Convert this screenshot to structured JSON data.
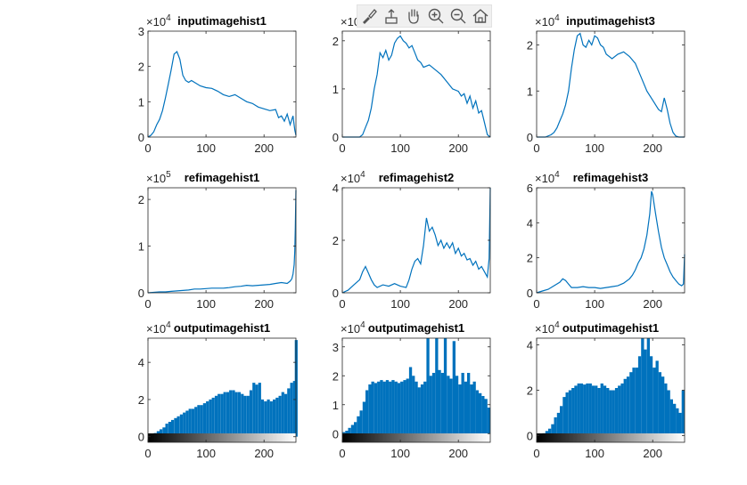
{
  "toolbar": {
    "items": [
      {
        "name": "brush-icon"
      },
      {
        "name": "data-tips-icon"
      },
      {
        "name": "pan-hand-icon"
      },
      {
        "name": "zoom-in-icon"
      },
      {
        "name": "zoom-out-icon"
      },
      {
        "name": "home-icon"
      }
    ]
  },
  "colors": {
    "line": "#0072bd",
    "axes": "#262626",
    "background": "#ffffff"
  },
  "chart_data": [
    {
      "type": "line",
      "title": "inputimagehist1",
      "exponent": "4",
      "xlim": [
        0,
        255
      ],
      "ylim": [
        0,
        3
      ],
      "xticks": [
        0,
        100,
        200
      ],
      "yticks": [
        0,
        1,
        2,
        3
      ],
      "x": [
        0,
        5,
        10,
        15,
        20,
        25,
        30,
        35,
        40,
        45,
        50,
        55,
        60,
        65,
        70,
        75,
        80,
        90,
        100,
        110,
        120,
        130,
        140,
        150,
        160,
        170,
        180,
        190,
        200,
        210,
        220,
        225,
        230,
        235,
        240,
        245,
        250,
        253,
        255
      ],
      "y": [
        0,
        0.05,
        0.15,
        0.35,
        0.5,
        0.75,
        1.1,
        1.5,
        1.9,
        2.35,
        2.42,
        2.2,
        1.75,
        1.6,
        1.55,
        1.6,
        1.55,
        1.45,
        1.4,
        1.38,
        1.3,
        1.2,
        1.15,
        1.2,
        1.1,
        1.0,
        0.95,
        0.85,
        0.8,
        0.75,
        0.78,
        0.55,
        0.6,
        0.45,
        0.65,
        0.35,
        0.6,
        0.2,
        0.05
      ]
    },
    {
      "type": "line",
      "title": "",
      "exponent": "4",
      "xlim": [
        0,
        255
      ],
      "ylim": [
        0,
        2.2
      ],
      "xticks": [
        0,
        100,
        200
      ],
      "yticks": [
        0,
        1,
        2
      ],
      "x": [
        0,
        15,
        30,
        35,
        40,
        45,
        50,
        55,
        60,
        65,
        70,
        75,
        80,
        85,
        90,
        95,
        100,
        105,
        110,
        115,
        120,
        125,
        130,
        135,
        140,
        150,
        160,
        170,
        180,
        190,
        200,
        205,
        210,
        215,
        220,
        225,
        230,
        235,
        240,
        245,
        250,
        255
      ],
      "y": [
        0,
        0,
        0,
        0.05,
        0.2,
        0.35,
        0.6,
        1.0,
        1.3,
        1.75,
        1.65,
        1.8,
        1.6,
        1.7,
        1.95,
        2.05,
        2.1,
        2.0,
        1.95,
        1.85,
        1.9,
        1.75,
        1.6,
        1.55,
        1.45,
        1.5,
        1.4,
        1.3,
        1.15,
        1.0,
        0.95,
        0.85,
        0.9,
        0.7,
        0.85,
        0.6,
        0.75,
        0.5,
        0.55,
        0.3,
        0.05,
        0
      ]
    },
    {
      "type": "line",
      "title": "inputimagehist3",
      "exponent": "4",
      "xlim": [
        0,
        255
      ],
      "ylim": [
        0,
        2.3
      ],
      "xticks": [
        0,
        100,
        200
      ],
      "yticks": [
        0,
        1,
        2
      ],
      "x": [
        0,
        15,
        25,
        30,
        35,
        40,
        45,
        50,
        55,
        60,
        65,
        70,
        75,
        80,
        85,
        90,
        95,
        100,
        105,
        110,
        115,
        120,
        130,
        140,
        150,
        160,
        170,
        180,
        190,
        200,
        210,
        215,
        220,
        225,
        230,
        235,
        240,
        245,
        255
      ],
      "y": [
        0,
        0,
        0.05,
        0.1,
        0.2,
        0.35,
        0.5,
        0.7,
        1.0,
        1.5,
        1.9,
        2.2,
        2.25,
        2.0,
        1.95,
        2.1,
        2.0,
        2.2,
        2.15,
        2.0,
        1.95,
        1.8,
        1.7,
        1.8,
        1.85,
        1.75,
        1.6,
        1.3,
        1.0,
        0.8,
        0.6,
        0.55,
        0.85,
        0.6,
        0.3,
        0.1,
        0.02,
        0,
        0
      ]
    },
    {
      "type": "line",
      "title": "refimagehist1",
      "exponent": "5",
      "xlim": [
        0,
        255
      ],
      "ylim": [
        0,
        2.25
      ],
      "xticks": [
        0,
        100,
        200
      ],
      "yticks": [
        0,
        1,
        2
      ],
      "x": [
        0,
        10,
        20,
        30,
        40,
        50,
        60,
        70,
        80,
        90,
        100,
        110,
        120,
        130,
        140,
        150,
        160,
        170,
        180,
        190,
        200,
        210,
        220,
        230,
        240,
        245,
        248,
        250,
        252,
        253,
        254,
        255
      ],
      "y": [
        0,
        0.01,
        0.02,
        0.02,
        0.03,
        0.04,
        0.05,
        0.06,
        0.08,
        0.08,
        0.09,
        0.1,
        0.1,
        0.1,
        0.11,
        0.13,
        0.14,
        0.16,
        0.15,
        0.16,
        0.17,
        0.18,
        0.2,
        0.22,
        0.2,
        0.25,
        0.3,
        0.4,
        0.6,
        0.9,
        1.4,
        2.2
      ]
    },
    {
      "type": "line",
      "title": "refimagehist2",
      "exponent": "4",
      "xlim": [
        0,
        255
      ],
      "ylim": [
        0,
        4
      ],
      "xticks": [
        0,
        100,
        200
      ],
      "yticks": [
        0,
        2,
        4
      ],
      "x": [
        0,
        10,
        20,
        30,
        35,
        40,
        45,
        50,
        55,
        60,
        70,
        80,
        90,
        100,
        110,
        115,
        120,
        125,
        130,
        135,
        140,
        145,
        150,
        155,
        160,
        165,
        170,
        175,
        180,
        185,
        190,
        195,
        200,
        205,
        210,
        215,
        220,
        225,
        230,
        235,
        240,
        245,
        250,
        253,
        255
      ],
      "y": [
        0,
        0.1,
        0.3,
        0.5,
        0.8,
        1.0,
        0.75,
        0.5,
        0.3,
        0.2,
        0.3,
        0.25,
        0.35,
        0.25,
        0.2,
        0.5,
        0.9,
        1.2,
        1.3,
        1.1,
        1.8,
        2.85,
        2.35,
        2.5,
        2.2,
        1.8,
        2.0,
        1.7,
        1.9,
        1.7,
        1.9,
        1.5,
        1.7,
        1.4,
        1.5,
        1.25,
        1.3,
        1.05,
        1.2,
        0.9,
        1.0,
        0.8,
        0.6,
        1.3,
        4.0
      ]
    },
    {
      "type": "line",
      "title": "refimagehist3",
      "exponent": "4",
      "xlim": [
        0,
        255
      ],
      "ylim": [
        0,
        6
      ],
      "xticks": [
        0,
        100,
        200
      ],
      "yticks": [
        0,
        2,
        4,
        6
      ],
      "x": [
        0,
        10,
        20,
        30,
        40,
        45,
        50,
        55,
        60,
        70,
        80,
        90,
        100,
        110,
        120,
        130,
        140,
        150,
        160,
        165,
        170,
        175,
        180,
        185,
        190,
        195,
        198,
        200,
        205,
        210,
        215,
        220,
        225,
        230,
        235,
        240,
        245,
        250,
        253,
        255
      ],
      "y": [
        0,
        0.1,
        0.2,
        0.4,
        0.6,
        0.8,
        0.7,
        0.5,
        0.3,
        0.3,
        0.35,
        0.3,
        0.3,
        0.25,
        0.3,
        0.35,
        0.4,
        0.55,
        0.8,
        1.0,
        1.3,
        1.7,
        2.0,
        2.5,
        3.3,
        4.5,
        5.8,
        5.6,
        4.5,
        3.5,
        2.6,
        2.0,
        1.6,
        1.2,
        0.9,
        0.7,
        0.5,
        0.4,
        0.5,
        2.2
      ]
    },
    {
      "type": "bar",
      "title": "outputimagehist1",
      "exponent": "4",
      "xlim": [
        0,
        255
      ],
      "ylim": [
        -0.3,
        5.3
      ],
      "xticks": [
        0,
        100,
        200
      ],
      "yticks": [
        0,
        2,
        4
      ],
      "colorbar": true,
      "x": [
        0,
        5,
        10,
        15,
        20,
        25,
        30,
        35,
        40,
        45,
        50,
        55,
        60,
        65,
        70,
        75,
        80,
        85,
        90,
        95,
        100,
        105,
        110,
        115,
        120,
        125,
        130,
        135,
        140,
        145,
        150,
        155,
        160,
        165,
        170,
        175,
        180,
        185,
        190,
        195,
        200,
        205,
        210,
        215,
        220,
        225,
        230,
        235,
        240,
        245,
        250,
        253
      ],
      "y": [
        0.05,
        0.1,
        0.2,
        0.3,
        0.4,
        0.5,
        0.7,
        0.8,
        0.9,
        1.0,
        1.1,
        1.2,
        1.3,
        1.4,
        1.5,
        1.5,
        1.6,
        1.7,
        1.7,
        1.8,
        1.9,
        2.0,
        2.1,
        2.2,
        2.3,
        2.3,
        2.4,
        2.4,
        2.5,
        2.5,
        2.4,
        2.4,
        2.3,
        2.2,
        2.2,
        2.5,
        2.9,
        2.8,
        2.9,
        2.0,
        1.9,
        2.0,
        1.9,
        2.0,
        2.1,
        2.2,
        2.4,
        2.3,
        2.6,
        2.9,
        3.0,
        5.2
      ]
    },
    {
      "type": "bar",
      "title": "outputimagehist1",
      "exponent": "4",
      "xlim": [
        0,
        255
      ],
      "ylim": [
        -0.3,
        3.3
      ],
      "xticks": [
        0,
        100,
        200
      ],
      "yticks": [
        0,
        1,
        2,
        3
      ],
      "colorbar": true,
      "x": [
        0,
        5,
        10,
        15,
        20,
        25,
        30,
        35,
        40,
        45,
        50,
        55,
        60,
        65,
        70,
        75,
        80,
        85,
        90,
        95,
        100,
        105,
        110,
        115,
        120,
        125,
        130,
        135,
        140,
        145,
        150,
        155,
        160,
        165,
        170,
        175,
        180,
        185,
        190,
        195,
        200,
        205,
        210,
        215,
        220,
        225,
        230,
        235,
        240,
        245,
        250
      ],
      "y": [
        0.05,
        0.1,
        0.2,
        0.3,
        0.4,
        0.6,
        0.8,
        1.1,
        1.5,
        1.7,
        1.8,
        1.75,
        1.8,
        1.85,
        1.8,
        1.85,
        1.8,
        1.85,
        1.8,
        1.75,
        1.8,
        1.85,
        1.9,
        2.3,
        2.0,
        1.8,
        1.6,
        1.7,
        1.8,
        3.3,
        2.0,
        2.1,
        3.3,
        2.2,
        2.1,
        3.3,
        2.0,
        1.9,
        3.2,
        2.0,
        1.7,
        2.1,
        1.8,
        2.1,
        1.7,
        1.8,
        1.5,
        1.4,
        1.3,
        1.2,
        0.9
      ]
    },
    {
      "type": "bar",
      "title": "outputimagehist1",
      "exponent": "4",
      "xlim": [
        0,
        255
      ],
      "ylim": [
        -0.3,
        4.3
      ],
      "xticks": [
        0,
        100,
        200
      ],
      "yticks": [
        0,
        2,
        4
      ],
      "colorbar": true,
      "x": [
        0,
        5,
        10,
        15,
        20,
        25,
        30,
        35,
        40,
        45,
        50,
        55,
        60,
        65,
        70,
        75,
        80,
        85,
        90,
        95,
        100,
        105,
        110,
        115,
        120,
        125,
        130,
        135,
        140,
        145,
        150,
        155,
        160,
        165,
        170,
        175,
        180,
        185,
        190,
        195,
        200,
        205,
        210,
        215,
        220,
        225,
        230,
        235,
        240,
        245,
        250
      ],
      "y": [
        0.02,
        0.05,
        0.1,
        0.2,
        0.3,
        0.5,
        0.8,
        1.0,
        1.3,
        1.7,
        1.9,
        2.0,
        2.1,
        2.2,
        2.3,
        2.3,
        2.25,
        2.3,
        2.3,
        2.2,
        2.2,
        2.1,
        2.3,
        2.2,
        2.1,
        2.0,
        2.0,
        2.1,
        2.2,
        2.3,
        2.5,
        2.6,
        2.8,
        3.0,
        3.0,
        3.5,
        4.3,
        3.8,
        4.3,
        3.5,
        3.0,
        3.3,
        2.8,
        2.6,
        2.3,
        2.0,
        1.6,
        1.4,
        1.2,
        1.0,
        2.0
      ]
    }
  ]
}
